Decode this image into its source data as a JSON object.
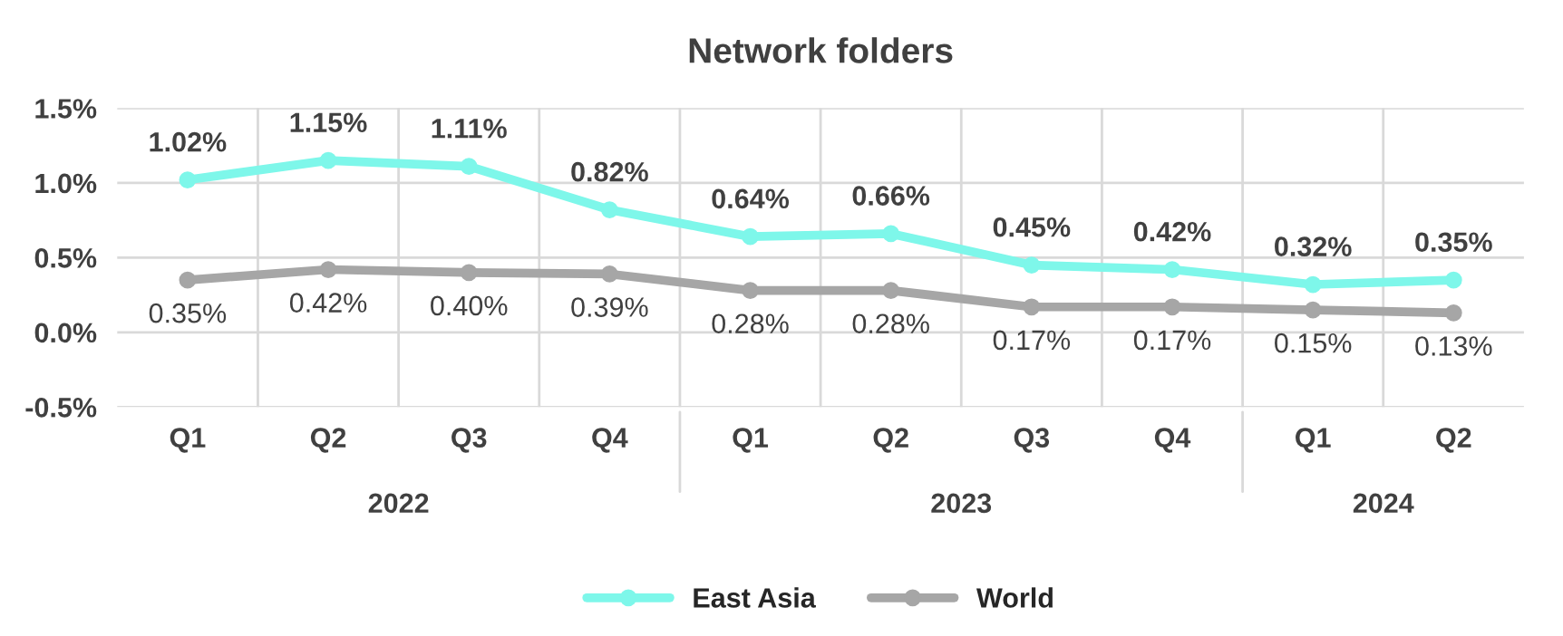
{
  "chart_data": {
    "type": "line",
    "title": "Network folders",
    "categories": [
      "Q1",
      "Q2",
      "Q3",
      "Q4",
      "Q1",
      "Q2",
      "Q3",
      "Q4",
      "Q1",
      "Q2"
    ],
    "series": [
      {
        "name": "East Asia",
        "color": "#7ef7ea",
        "values": [
          1.02,
          1.15,
          1.11,
          0.82,
          0.64,
          0.66,
          0.45,
          0.42,
          0.32,
          0.35
        ],
        "value_labels": [
          "1.02%",
          "1.15%",
          "1.11%",
          "0.82%",
          "0.64%",
          "0.66%",
          "0.45%",
          "0.42%",
          "0.32%",
          "0.35%"
        ]
      },
      {
        "name": "World",
        "color": "#a6a6a6",
        "values": [
          0.35,
          0.42,
          0.4,
          0.39,
          0.28,
          0.28,
          0.17,
          0.17,
          0.15,
          0.13
        ],
        "value_labels": [
          "0.35%",
          "0.42%",
          "0.40%",
          "0.39%",
          "0.28%",
          "0.28%",
          "0.17%",
          "0.17%",
          "0.15%",
          "0.13%"
        ]
      }
    ],
    "ylim": [
      -0.5,
      1.5
    ],
    "yticks": [
      {
        "value": -0.5,
        "label": "-0.5%"
      },
      {
        "value": 0.0,
        "label": "0.0%"
      },
      {
        "value": 0.5,
        "label": "0.5%"
      },
      {
        "value": 1.0,
        "label": "1.0%"
      },
      {
        "value": 1.5,
        "label": "1.5%"
      }
    ],
    "annotations": [
      "2022",
      "2023",
      "2024"
    ],
    "grid": true,
    "legend": "bottom",
    "marker": "circle",
    "line_style": "solid"
  }
}
